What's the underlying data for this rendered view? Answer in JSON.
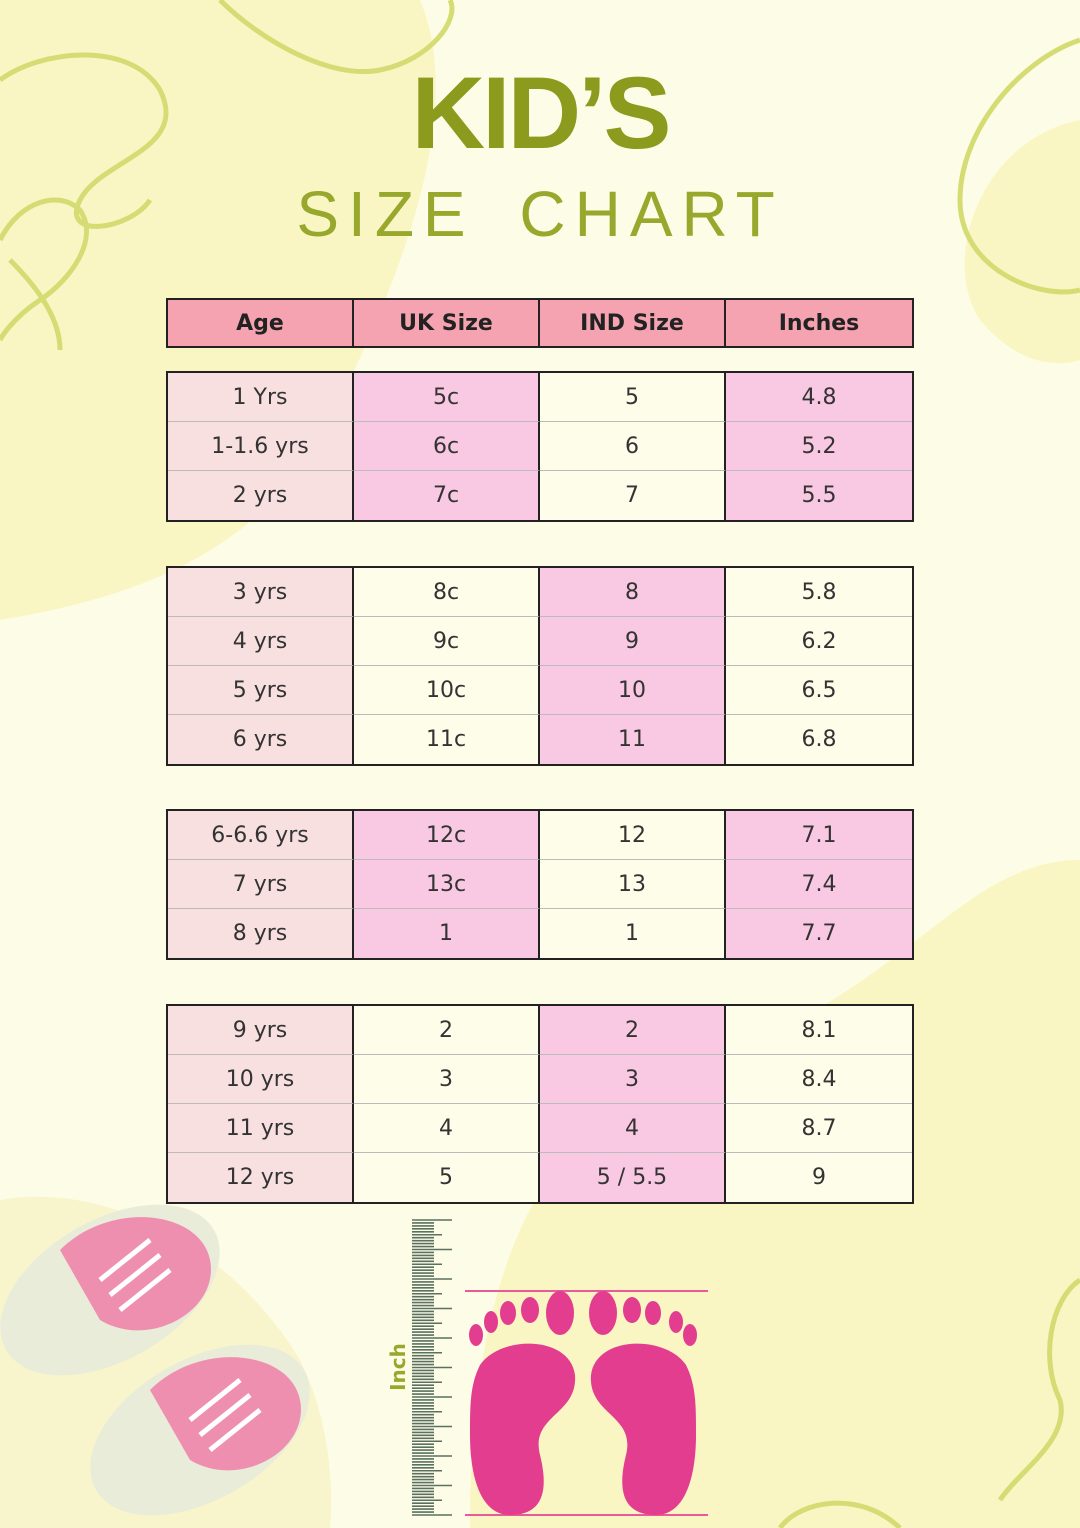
{
  "title": {
    "line1": "KID’S",
    "line2": "SIZE  CHART"
  },
  "table": {
    "headers": [
      "Age",
      "UK Size",
      "IND Size",
      "Inches"
    ],
    "groups": [
      [
        [
          "1 Yrs",
          "5c",
          "5",
          "4.8"
        ],
        [
          "1-1.6 yrs",
          "6c",
          "6",
          "5.2"
        ],
        [
          "2 yrs",
          "7c",
          "7",
          "5.5"
        ]
      ],
      [
        [
          "3 yrs",
          "8c",
          "8",
          "5.8"
        ],
        [
          "4 yrs",
          "9c",
          "9",
          "6.2"
        ],
        [
          "5 yrs",
          "10c",
          "10",
          "6.5"
        ],
        [
          "6 yrs",
          "11c",
          "11",
          "6.8"
        ]
      ],
      [
        [
          "6-6.6 yrs",
          "12c",
          "12",
          "7.1"
        ],
        [
          "7 yrs",
          "13c",
          "13",
          "7.4"
        ],
        [
          "8 yrs",
          "1",
          "1",
          "7.7"
        ]
      ],
      [
        [
          "9 yrs",
          "2",
          "2",
          "8.1"
        ],
        [
          "10 yrs",
          "3",
          "3",
          "8.4"
        ],
        [
          "11 yrs",
          "4",
          "4",
          "8.7"
        ],
        [
          "12 yrs",
          "5",
          "5 / 5.5",
          "9"
        ]
      ]
    ]
  },
  "ruler": {
    "label": "Inch"
  },
  "colors": {
    "title": "#8c9a1e",
    "header": "#f6a3b1",
    "pink_cell": "#f9c8e3",
    "age_cell": "#f9e0e0",
    "feet": "#e33d90",
    "shoes": "#ef8fb0"
  }
}
